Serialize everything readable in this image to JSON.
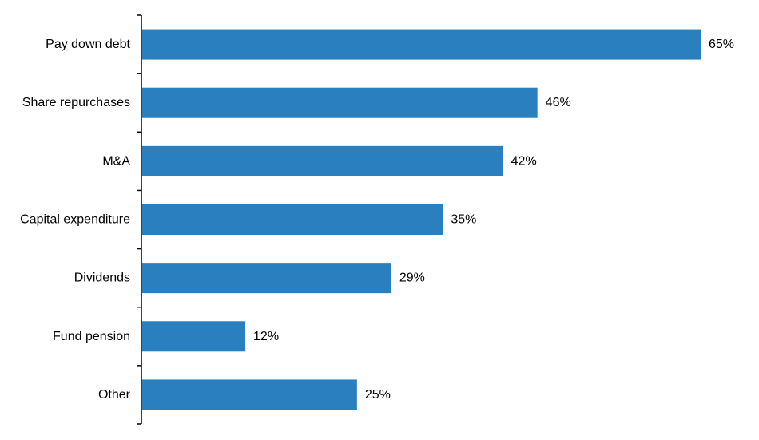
{
  "chart_data": {
    "type": "bar",
    "orientation": "horizontal",
    "title": "",
    "xlabel": "",
    "ylabel": "",
    "categories": [
      "Pay down debt",
      "Share repurchases",
      "M&A",
      "Capital expenditure",
      "Dividends",
      "Fund pension",
      "Other"
    ],
    "values": [
      65,
      46,
      42,
      35,
      29,
      12,
      25
    ],
    "value_labels": [
      "65%",
      "46%",
      "42%",
      "35%",
      "29%",
      "12%",
      "25%"
    ],
    "xlim": [
      0,
      65
    ],
    "grid": false,
    "legend": "none",
    "colors": {
      "bar": "#2a7fbf",
      "axis": "#000000",
      "text": "#000000"
    }
  }
}
